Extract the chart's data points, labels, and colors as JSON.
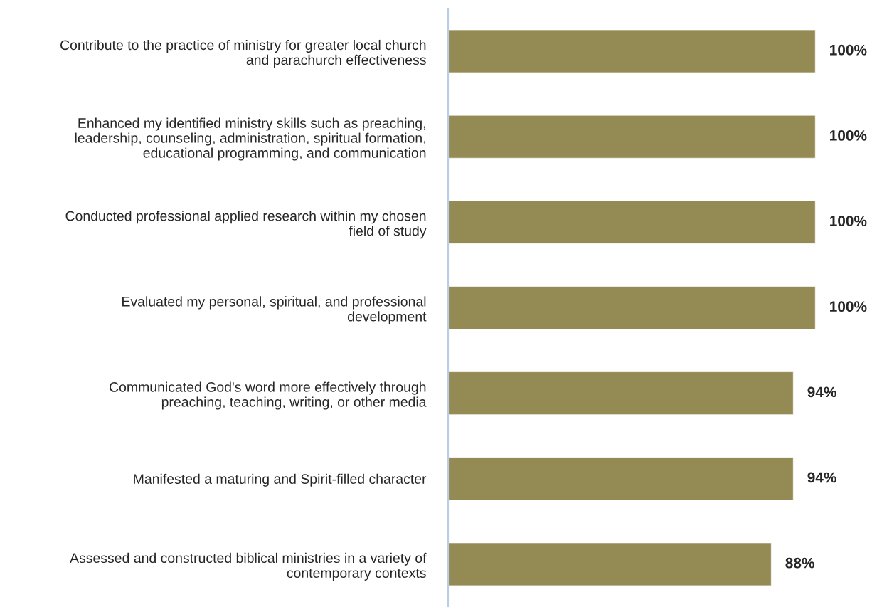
{
  "chart_data": {
    "type": "bar",
    "orientation": "horizontal",
    "categories": [
      "Contribute to the practice of ministry for greater local church\nand parachurch effectiveness",
      "Enhanced my identified ministry skills such as preaching,\nleadership, counseling, administration, spiritual formation,\neducational programming, and communication",
      "Conducted professional applied research within my chosen\nfield of study",
      "Evaluated my personal, spiritual, and professional\ndevelopment",
      "Communicated God's word more effectively through\npreaching, teaching, writing, or other media",
      "Manifested a maturing and Spirit-filled character",
      "Assessed and constructed biblical ministries in a variety of\ncontemporary contexts"
    ],
    "values": [
      100,
      100,
      100,
      100,
      94,
      94,
      88
    ],
    "value_labels": [
      "100%",
      "100%",
      "100%",
      "100%",
      "94%",
      "94%",
      "88%"
    ],
    "color": "#948a54",
    "tick_labels": "y",
    "grid": false,
    "legend": false
  }
}
